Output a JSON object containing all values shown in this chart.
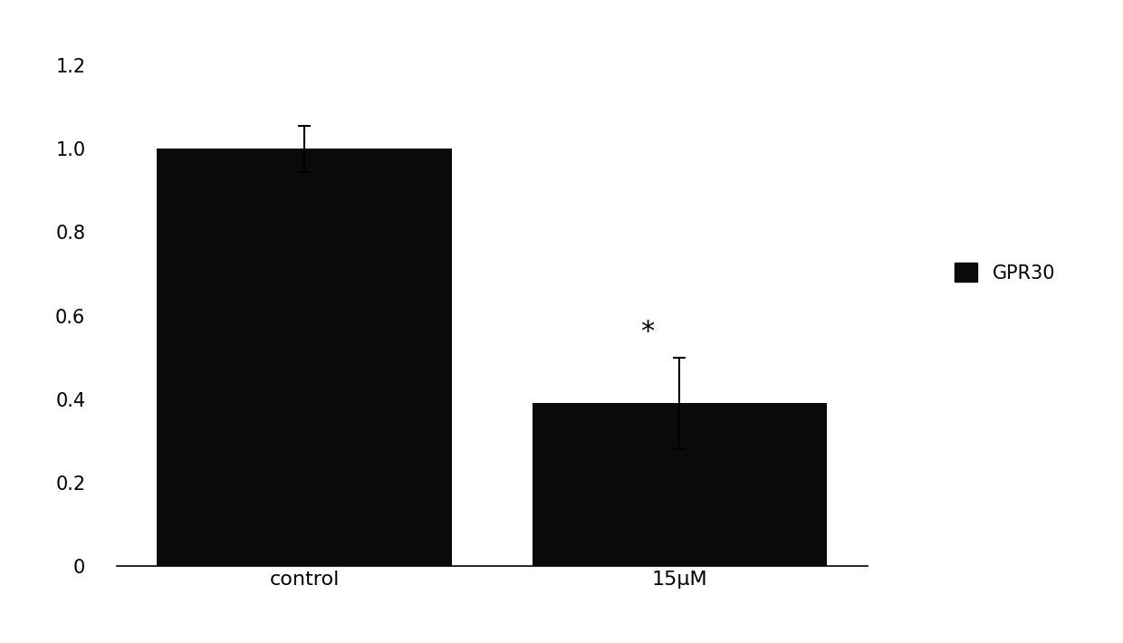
{
  "categories": [
    "control",
    "15μM"
  ],
  "values": [
    1.0,
    0.39
  ],
  "errors": [
    0.055,
    0.11
  ],
  "bar_color": "#0a0a0a",
  "bar_width": 0.55,
  "x_positions": [
    0.3,
    1.0
  ],
  "ylim": [
    0,
    1.28
  ],
  "yticks": [
    0,
    0.2,
    0.4,
    0.6,
    0.8,
    1.0,
    1.2
  ],
  "legend_label": "GPR30",
  "annotation": "*",
  "annotation_index": 1,
  "background_color": "#ffffff",
  "capsize": 5,
  "figure_width": 12.4,
  "figure_height": 7.1,
  "dpi": 100
}
